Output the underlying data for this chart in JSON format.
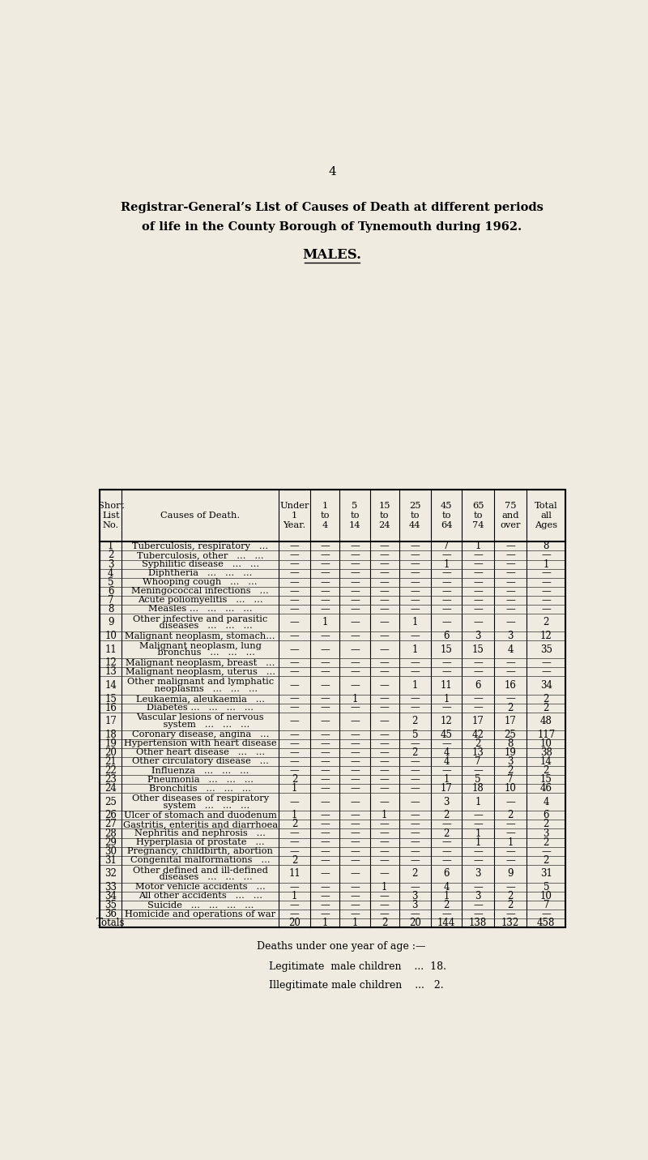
{
  "page_number": "4",
  "title_line1": "Registrar-General’s List of Causes of Death at different periods",
  "title_line2": "of life in the County Borough of Tynemouth during 1962.",
  "subtitle": "MALES.",
  "bg_color": "#f0ebe0",
  "rows": [
    {
      "no": "1",
      "cause": "Tuberculosis, respiratory   ...",
      "u1": "—",
      "1t4": "—",
      "5t14": "—",
      "15t24": "—",
      "25t44": "—",
      "45t64": "7",
      "65t74": "1",
      "75o": "—",
      "total": "8",
      "double": false
    },
    {
      "no": "2",
      "cause": "Tuberculosis, other   ...   ...",
      "u1": "—",
      "1t4": "—",
      "5t14": "—",
      "15t24": "—",
      "25t44": "—",
      "45t64": "—",
      "65t74": "—",
      "75o": "—",
      "total": "—",
      "double": false
    },
    {
      "no": "3",
      "cause": "Syphilitic disease   ...   ...",
      "u1": "—",
      "1t4": "—",
      "5t14": "—",
      "15t24": "—",
      "25t44": "—",
      "45t64": "1",
      "65t74": "—",
      "75o": "—",
      "total": "1",
      "double": false
    },
    {
      "no": "4",
      "cause": "Diphtheria   ...   ...   ...",
      "u1": "—",
      "1t4": "—",
      "5t14": "—",
      "15t24": "—",
      "25t44": "—",
      "45t64": "—",
      "65t74": "—",
      "75o": "—",
      "total": "—",
      "double": false
    },
    {
      "no": "5",
      "cause": "Whooping cough   ...   ...",
      "u1": "—",
      "1t4": "—",
      "5t14": "—",
      "15t24": "—",
      "25t44": "—",
      "45t64": "—",
      "65t74": "—",
      "75o": "—",
      "total": "—",
      "double": false
    },
    {
      "no": "6",
      "cause": "Meningococcal infections   ...",
      "u1": "—",
      "1t4": "—",
      "5t14": "—",
      "15t24": "—",
      "25t44": "—",
      "45t64": "—",
      "65t74": "—",
      "75o": "—",
      "total": "—",
      "double": false
    },
    {
      "no": "7",
      "cause": "Acute poliomyelitis   ...   ...",
      "u1": "—",
      "1t4": "—",
      "5t14": "—",
      "15t24": "—",
      "25t44": "—",
      "45t64": "—",
      "65t74": "—",
      "75o": "—",
      "total": "—",
      "double": false
    },
    {
      "no": "8",
      "cause": "Measles ...   ...   ...   ...",
      "u1": "—",
      "1t4": "—",
      "5t14": "—",
      "15t24": "—",
      "25t44": "—",
      "45t64": "—",
      "65t74": "—",
      "75o": "—",
      "total": "—",
      "double": false
    },
    {
      "no": "9",
      "cause1": "Other infective and parasitic",
      "cause2": "    diseases   ...   ...   ...",
      "u1": "—",
      "1t4": "1",
      "5t14": "—",
      "15t24": "—",
      "25t44": "1",
      "45t64": "—",
      "65t74": "—",
      "75o": "—",
      "total": "2",
      "double": true
    },
    {
      "no": "10",
      "cause": "Malignant neoplasm, stomach...",
      "u1": "—",
      "1t4": "—",
      "5t14": "—",
      "15t24": "—",
      "25t44": "—",
      "45t64": "6",
      "65t74": "3",
      "75o": "3",
      "total": "12",
      "double": false
    },
    {
      "no": "11",
      "cause1": "Malignant neoplasm, lung",
      "cause2": "    bronchus   ...   ...   ...",
      "u1": "—",
      "1t4": "—",
      "5t14": "—",
      "15t24": "—",
      "25t44": "1",
      "45t64": "15",
      "65t74": "15",
      "75o": "4",
      "total": "35",
      "double": true
    },
    {
      "no": "12",
      "cause": "Malignant neoplasm, breast   ...",
      "u1": "—",
      "1t4": "—",
      "5t14": "—",
      "15t24": "—",
      "25t44": "—",
      "45t64": "—",
      "65t74": "—",
      "75o": "—",
      "total": "—",
      "double": false
    },
    {
      "no": "13",
      "cause": "Malignant neoplasm, uterus   ...",
      "u1": "—",
      "1t4": "—",
      "5t14": "—",
      "15t24": "—",
      "25t44": "—",
      "45t64": "—",
      "65t74": "—",
      "75o": "—",
      "total": "—",
      "double": false
    },
    {
      "no": "14",
      "cause1": "Other malignant and lymphatic",
      "cause2": "    neoplasms   ...   ...   ...",
      "u1": "—",
      "1t4": "—",
      "5t14": "—",
      "15t24": "—",
      "25t44": "1",
      "45t64": "11",
      "65t74": "6",
      "75o": "16",
      "total": "34",
      "double": true
    },
    {
      "no": "15",
      "cause": "Leukaemia, aleukaemia   ...",
      "u1": "—",
      "1t4": "—",
      "5t14": "1",
      "15t24": "—",
      "25t44": "—",
      "45t64": "1",
      "65t74": "—",
      "75o": "—",
      "total": "2",
      "double": false
    },
    {
      "no": "16",
      "cause": "Diabetes ...   ...   ...   ...",
      "u1": "—",
      "1t4": "—",
      "5t14": "—",
      "15t24": "—",
      "25t44": "—",
      "45t64": "—",
      "65t74": "—",
      "75o": "2",
      "total": "2",
      "double": false
    },
    {
      "no": "17",
      "cause1": "Vascular lesions of nervous",
      "cause2": "    system   ...   ...   ...",
      "u1": "—",
      "1t4": "—",
      "5t14": "—",
      "15t24": "—",
      "25t44": "2",
      "45t64": "12",
      "65t74": "17",
      "75o": "17",
      "total": "48",
      "double": true
    },
    {
      "no": "18",
      "cause": "Coronary disease, angina   ...",
      "u1": "—",
      "1t4": "—",
      "5t14": "—",
      "15t24": "—",
      "25t44": "5",
      "45t64": "45",
      "65t74": "42",
      "75o": "25",
      "total": "117",
      "double": false
    },
    {
      "no": "19",
      "cause": "Hypertension with heart disease",
      "u1": "—",
      "1t4": "—",
      "5t14": "—",
      "15t24": "—",
      "25t44": "—",
      "45t64": "—",
      "65t74": "2",
      "75o": "8",
      "total": "10",
      "double": false
    },
    {
      "no": "20",
      "cause": "Other heart disease   ...   ...",
      "u1": "—",
      "1t4": "—",
      "5t14": "—",
      "15t24": "—",
      "25t44": "2",
      "45t64": "4",
      "65t74": "13",
      "75o": "19",
      "total": "38",
      "double": false
    },
    {
      "no": "21",
      "cause": "Other circulatory disease   ...",
      "u1": "—",
      "1t4": "—",
      "5t14": "—",
      "15t24": "—",
      "25t44": "—",
      "45t64": "4",
      "65t74": "7",
      "75o": "3",
      "total": "14",
      "double": false
    },
    {
      "no": "22",
      "cause": "Influenza   ...   ...   ...",
      "u1": "—",
      "1t4": "—",
      "5t14": "—",
      "15t24": "—",
      "25t44": "—",
      "45t64": "—",
      "65t74": "—",
      "75o": "2",
      "total": "2",
      "double": false
    },
    {
      "no": "23",
      "cause": "Pneumonia   ...   ...   ...",
      "u1": "2",
      "1t4": "—",
      "5t14": "—",
      "15t24": "—",
      "25t44": "—",
      "45t64": "1",
      "65t74": "5",
      "75o": "7",
      "total": "15",
      "double": false
    },
    {
      "no": "24",
      "cause": "Bronchitis   ...   ...   ...",
      "u1": "1",
      "1t4": "—",
      "5t14": "—",
      "15t24": "—",
      "25t44": "—",
      "45t64": "17",
      "65t74": "18",
      "75o": "10",
      "total": "46",
      "double": false
    },
    {
      "no": "25",
      "cause1": "Other diseases of respiratory",
      "cause2": "    system   ...   ...   ...",
      "u1": "—",
      "1t4": "—",
      "5t14": "—",
      "15t24": "—",
      "25t44": "—",
      "45t64": "3",
      "65t74": "1",
      "75o": "—",
      "total": "4",
      "double": true
    },
    {
      "no": "26",
      "cause": "Ulcer of stomach and duodenum",
      "u1": "1",
      "1t4": "—",
      "5t14": "—",
      "15t24": "1",
      "25t44": "—",
      "45t64": "2",
      "65t74": "—",
      "75o": "2",
      "total": "6",
      "double": false
    },
    {
      "no": "27",
      "cause": "Gastritis, enteritis and diarrhoea",
      "u1": "2",
      "1t4": "—",
      "5t14": "—",
      "15t24": "—",
      "25t44": "—",
      "45t64": "—",
      "65t74": "—",
      "75o": "—",
      "total": "2",
      "double": false
    },
    {
      "no": "28",
      "cause": "Nephritis and nephrosis   ...",
      "u1": "—",
      "1t4": "—",
      "5t14": "—",
      "15t24": "—",
      "25t44": "—",
      "45t64": "2",
      "65t74": "1",
      "75o": "—",
      "total": "3",
      "double": false
    },
    {
      "no": "29",
      "cause": "Hyperplasia of prostate   ...",
      "u1": "—",
      "1t4": "—",
      "5t14": "—",
      "15t24": "—",
      "25t44": "—",
      "45t64": "—",
      "65t74": "1",
      "75o": "1",
      "total": "2",
      "double": false
    },
    {
      "no": "30",
      "cause": "Pregnancy, childbirth, abortion",
      "u1": "—",
      "1t4": "—",
      "5t14": "—",
      "15t24": "—",
      "25t44": "—",
      "45t64": "—",
      "65t74": "—",
      "75o": "—",
      "total": "—",
      "double": false
    },
    {
      "no": "31",
      "cause": "Congenital malformations   ...",
      "u1": "2",
      "1t4": "—",
      "5t14": "—",
      "15t24": "—",
      "25t44": "—",
      "45t64": "—",
      "65t74": "—",
      "75o": "—",
      "total": "2",
      "double": false
    },
    {
      "no": "32",
      "cause1": "Other defined and ill-defined",
      "cause2": "    diseases   ...   ...   ...",
      "u1": "11",
      "1t4": "—",
      "5t14": "—",
      "15t24": "—",
      "25t44": "2",
      "45t64": "6",
      "65t74": "3",
      "75o": "9",
      "total": "31",
      "double": true
    },
    {
      "no": "33",
      "cause": "Motor vehicle accidents   ...",
      "u1": "—",
      "1t4": "—",
      "5t14": "—",
      "15t24": "1",
      "25t44": "—",
      "45t64": "4",
      "65t74": "—",
      "75o": "—",
      "total": "5",
      "double": false
    },
    {
      "no": "34",
      "cause": "All other accidents   ...   ...",
      "u1": "1",
      "1t4": "—",
      "5t14": "—",
      "15t24": "—",
      "25t44": "3",
      "45t64": "1",
      "65t74": "3",
      "75o": "2",
      "total": "10",
      "double": false
    },
    {
      "no": "35",
      "cause": "Suicide   ...   ...   ...   ...",
      "u1": "—",
      "1t4": "—",
      "5t14": "—",
      "15t24": "—",
      "25t44": "3",
      "45t64": "2",
      "65t74": "—",
      "75o": "2",
      "total": "7",
      "double": false
    },
    {
      "no": "36",
      "cause": "Homicide and operations of war",
      "u1": "—",
      "1t4": "—",
      "5t14": "—",
      "15t24": "—",
      "25t44": "—",
      "45t64": "—",
      "65t74": "—",
      "75o": "—",
      "total": "—",
      "double": false
    },
    {
      "no": "Totals",
      "cause": "",
      "u1": "20",
      "1t4": "1",
      "5t14": "1",
      "15t24": "2",
      "25t44": "20",
      "45t64": "144",
      "65t74": "138",
      "75o": "132",
      "total": "458",
      "double": false
    }
  ],
  "footer_line1": "Deaths under one year of age :—",
  "footer_line2": "Legitimate  male children    ...  18.",
  "footer_line3": "Illegitimate male children    ...   2."
}
